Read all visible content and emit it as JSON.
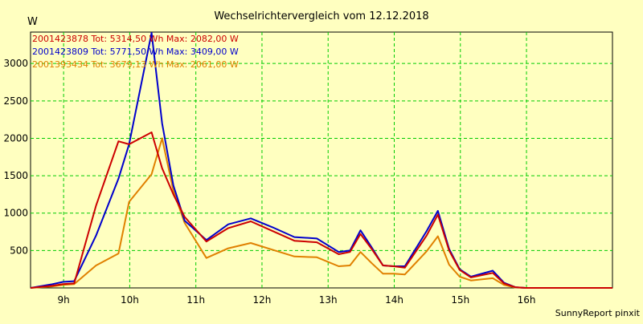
{
  "chart_data": {
    "type": "line",
    "title": "Wechselrichtervergleich vom 12.12.2018",
    "ylabel": "W",
    "xlabel": "",
    "footer": "SunnyReport pinxit",
    "ylim": [
      0,
      3420
    ],
    "xlim": [
      8.5,
      17.3
    ],
    "y_ticks": [
      500,
      1000,
      1500,
      2000,
      2500,
      3000
    ],
    "x_ticks": [
      {
        "value": 9.0,
        "label": "9h"
      },
      {
        "value": 10.0,
        "label": "10h"
      },
      {
        "value": 11.0,
        "label": "11h"
      },
      {
        "value": 12.0,
        "label": "12h"
      },
      {
        "value": 13.0,
        "label": "13h"
      },
      {
        "value": 14.0,
        "label": "14h"
      },
      {
        "value": 15.0,
        "label": "15h"
      },
      {
        "value": 16.0,
        "label": "16h"
      }
    ],
    "grid": true,
    "x": [
      8.5,
      8.83,
      8.99,
      9.16,
      9.49,
      9.83,
      9.99,
      10.33,
      10.49,
      10.66,
      10.83,
      11.16,
      11.49,
      11.83,
      12.16,
      12.49,
      12.83,
      13.16,
      13.33,
      13.49,
      13.66,
      13.83,
      13.99,
      14.16,
      14.49,
      14.66,
      14.83,
      14.99,
      15.16,
      15.49,
      15.66,
      15.83,
      15.99,
      16.16,
      16.33,
      16.49,
      16.66,
      17.3
    ],
    "series": [
      {
        "name": "2001423878 Tot: 5314,50 Wh Max: 2082,00 W",
        "color": "#cc0000",
        "values": [
          0,
          30,
          50,
          60,
          1100,
          1960,
          1920,
          2080,
          1600,
          1250,
          950,
          620,
          800,
          890,
          760,
          630,
          610,
          450,
          480,
          720,
          520,
          300,
          290,
          270,
          700,
          980,
          500,
          240,
          140,
          200,
          60,
          10,
          0,
          0,
          0,
          0,
          0,
          0
        ]
      },
      {
        "name": "2001423809 Tot: 5771,50 Wh Max: 3409,00 W",
        "color": "#0000cc",
        "values": [
          0,
          50,
          80,
          90,
          700,
          1460,
          1920,
          3409,
          2200,
          1370,
          900,
          640,
          850,
          930,
          810,
          680,
          660,
          480,
          500,
          770,
          540,
          300,
          290,
          290,
          760,
          1030,
          520,
          250,
          150,
          230,
          70,
          10,
          0,
          0,
          0,
          0,
          0,
          0
        ]
      },
      {
        "name": "2001393434 Tot: 3679,13 Wh Max: 2061,00 W",
        "color": "#e08000",
        "values": [
          0,
          20,
          40,
          50,
          300,
          460,
          1150,
          1520,
          2000,
          1300,
          870,
          400,
          530,
          600,
          510,
          420,
          410,
          290,
          300,
          480,
          330,
          190,
          190,
          180,
          490,
          690,
          310,
          150,
          100,
          130,
          40,
          5,
          0,
          0,
          0,
          0,
          0,
          0
        ]
      }
    ],
    "footer_color": "#000000"
  }
}
